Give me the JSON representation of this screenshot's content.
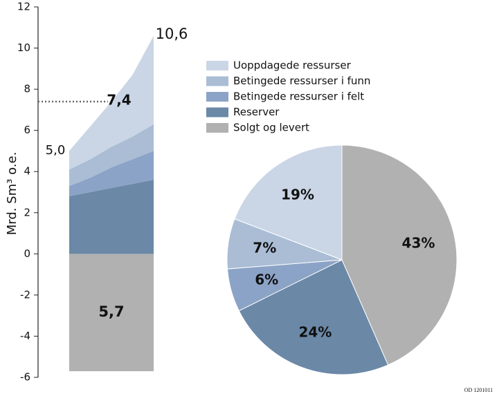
{
  "chart_data": [
    {
      "type": "area",
      "y_label": "Mrd. Sm³ o.e.",
      "categories": [
        null,
        null,
        null,
        null,
        null
      ],
      "ylim": [
        -6,
        12
      ],
      "yticks": [
        -6,
        -4,
        -2,
        0,
        2,
        4,
        6,
        8,
        10,
        12
      ],
      "stacked": true,
      "series": [
        {
          "name": "Solgt og levert",
          "color": "#b1b1b1",
          "values": [
            -5.7,
            -5.7,
            -5.7,
            -5.7,
            -5.7
          ]
        },
        {
          "name": "Reserver",
          "color": "#6b88a7",
          "values": [
            2.8,
            3.0,
            3.2,
            3.4,
            3.6
          ]
        },
        {
          "name": "Betingede ressurser i felt",
          "color": "#8ba3c6",
          "values": [
            0.5,
            0.7,
            1.0,
            1.2,
            1.4
          ]
        },
        {
          "name": "Betingede ressurser  i funn",
          "color": "#aabdd5",
          "values": [
            0.8,
            0.9,
            1.0,
            1.1,
            1.3
          ]
        },
        {
          "name": "Uoppdagede ressurser",
          "color": "#cad6e5",
          "values": [
            0.9,
            1.6,
            2.2,
            3.0,
            4.3
          ]
        }
      ],
      "annotations": [
        "5,0",
        "7,4",
        "10,6",
        "5,7"
      ]
    },
    {
      "type": "pie",
      "values": [
        43,
        24,
        6,
        7,
        19
      ],
      "value_labels": [
        "43%",
        "24%",
        "6%",
        "7%",
        "19%"
      ]
    }
  ],
  "footer": "OD 1201011"
}
